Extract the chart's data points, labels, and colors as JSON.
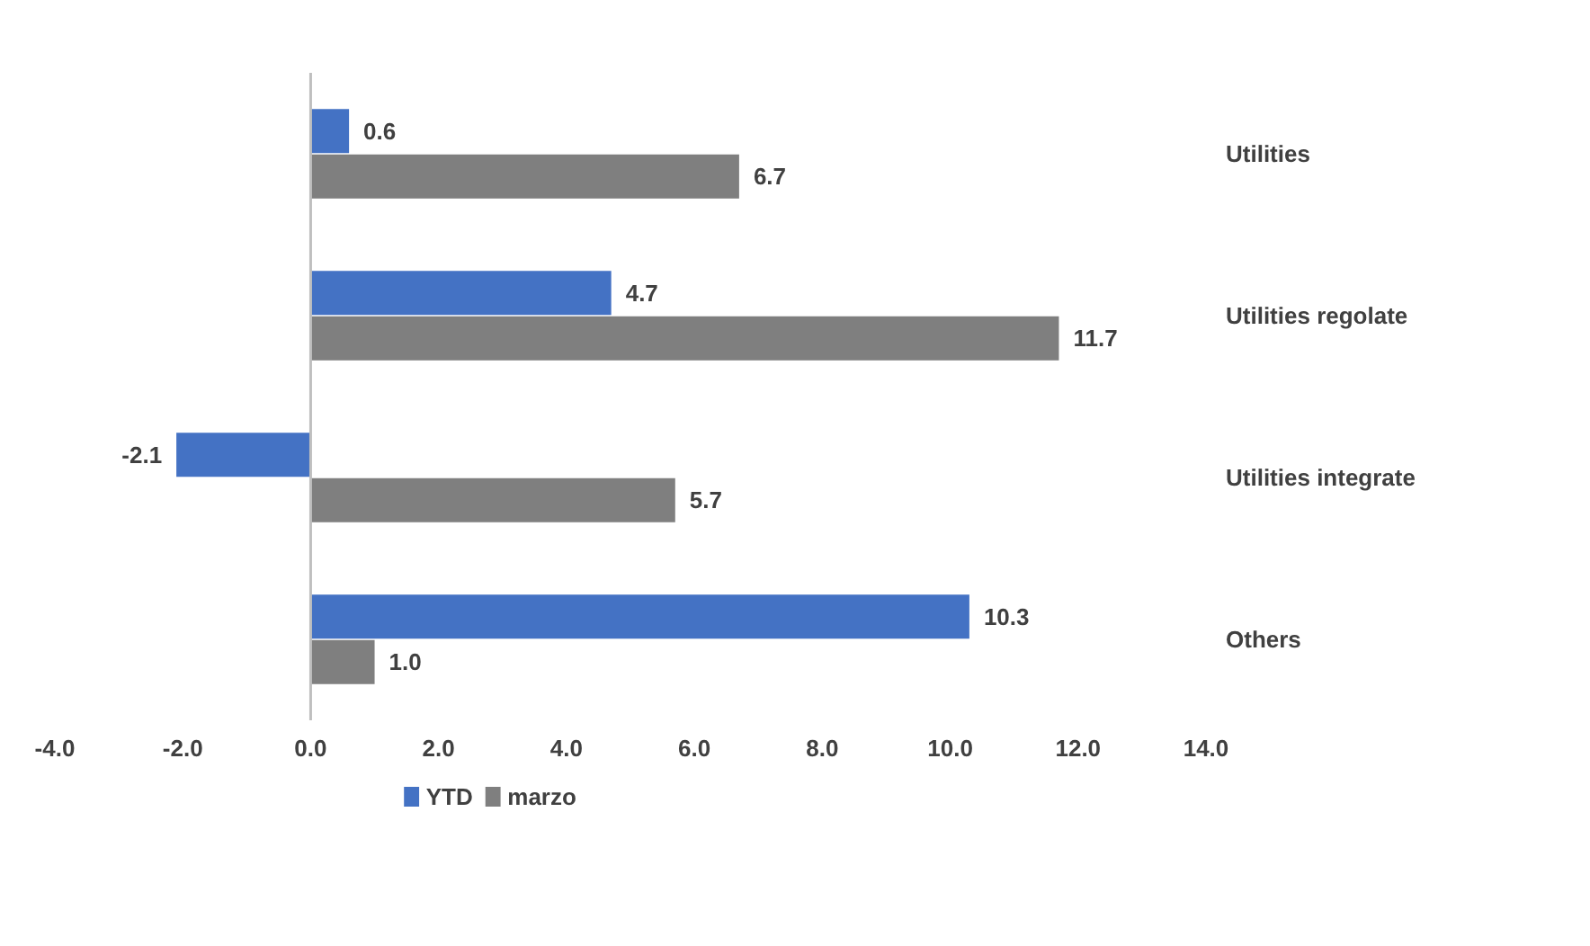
{
  "chart_data": {
    "type": "bar",
    "orientation": "horizontal",
    "categories": [
      "Utilities",
      "Utilities regolate",
      "Utilities integrate",
      "Others"
    ],
    "series": [
      {
        "name": "YTD",
        "color": "#4472c4",
        "values": [
          0.6,
          4.7,
          -2.1,
          10.3
        ],
        "value_labels": [
          "0.6",
          "4.7",
          "-2.1",
          "10.3"
        ]
      },
      {
        "name": "marzo",
        "color": "#7f7f7f",
        "values": [
          6.7,
          11.7,
          5.7,
          1.0
        ],
        "value_labels": [
          "6.7",
          "11.7",
          "5.7",
          "1.0"
        ]
      }
    ],
    "xlim": [
      -4,
      14
    ],
    "xticks": [
      {
        "value": -4,
        "label": "-4.0"
      },
      {
        "value": -2,
        "label": "-2.0"
      },
      {
        "value": 0,
        "label": "0.0"
      },
      {
        "value": 2,
        "label": "2.0"
      },
      {
        "value": 4,
        "label": "4.0"
      },
      {
        "value": 6,
        "label": "6.0"
      },
      {
        "value": 8,
        "label": "8.0"
      },
      {
        "value": 10,
        "label": "10.0"
      },
      {
        "value": 12,
        "label": "12.0"
      },
      {
        "value": 14,
        "label": "14.0"
      }
    ],
    "ref_lines": [
      {
        "axis": "x",
        "value": 0,
        "color": "#bfbfbf"
      }
    ],
    "grid": false,
    "legend": "bottom"
  }
}
